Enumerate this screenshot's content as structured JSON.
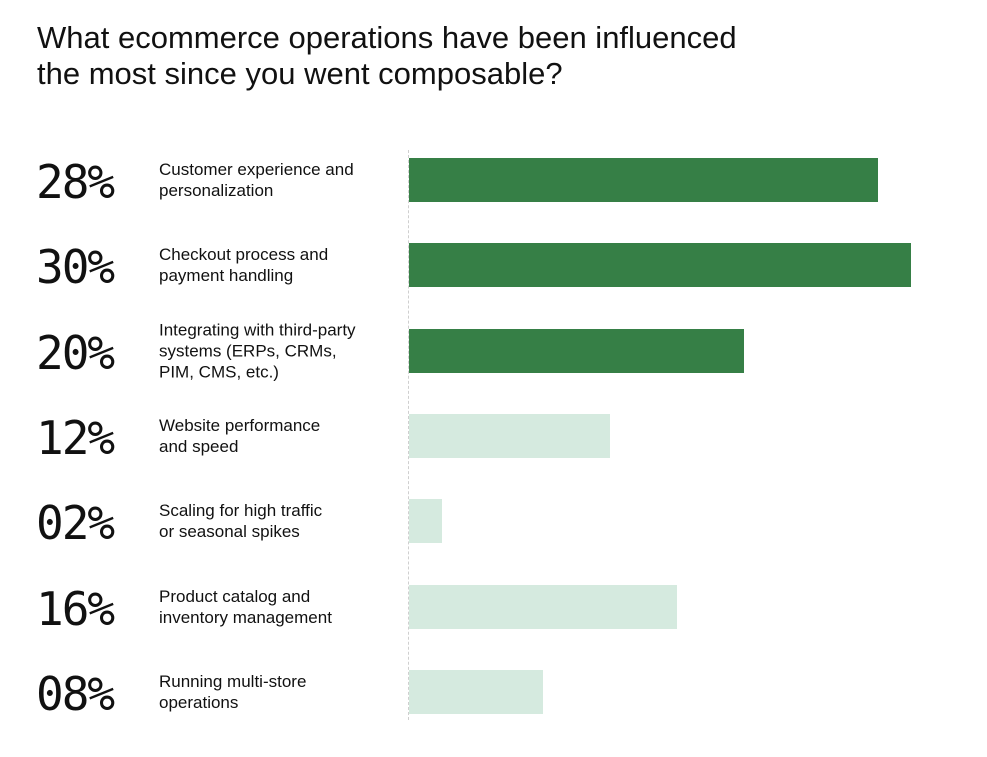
{
  "title_lines": [
    "What ecommerce operations have been influenced",
    "the most since you went composable?"
  ],
  "colors": {
    "highlight": "#367f46",
    "muted": "#d5eadf",
    "text": "#111111"
  },
  "chart_data": {
    "type": "bar",
    "orientation": "horizontal",
    "title": "What ecommerce operations have been influenced the most since you went composable?",
    "categories": [
      "Customer experience and personalization",
      "Checkout process and payment handling",
      "Integrating with third-party systems (ERPs, CRMs, PIM, CMS, etc.)",
      "Website performance and speed",
      "Scaling for high traffic or seasonal spikes",
      "Product catalog and inventory management",
      "Running multi-store operations"
    ],
    "values": [
      28,
      30,
      20,
      12,
      2,
      16,
      8
    ],
    "xlim": [
      0,
      30
    ],
    "grid": false,
    "rows": [
      {
        "pct": "28%",
        "label_lines": [
          "Customer experience and",
          "personalization"
        ],
        "value": 28,
        "highlight": true
      },
      {
        "pct": "30%",
        "label_lines": [
          "Checkout process and",
          "payment handling"
        ],
        "value": 30,
        "highlight": true
      },
      {
        "pct": "20%",
        "label_lines": [
          "Integrating with third-party",
          "systems (ERPs, CRMs,",
          "PIM, CMS, etc.)"
        ],
        "value": 20,
        "highlight": true
      },
      {
        "pct": "12%",
        "label_lines": [
          "Website performance",
          "and speed"
        ],
        "value": 12,
        "highlight": false
      },
      {
        "pct": "02%",
        "label_lines": [
          "Scaling for high traffic",
          "or seasonal spikes"
        ],
        "value": 2,
        "highlight": false
      },
      {
        "pct": "16%",
        "label_lines": [
          "Product catalog and",
          "inventory management"
        ],
        "value": 16,
        "highlight": false
      },
      {
        "pct": "08%",
        "label_lines": [
          "Running multi-store",
          "operations"
        ],
        "value": 8,
        "highlight": false
      }
    ]
  }
}
